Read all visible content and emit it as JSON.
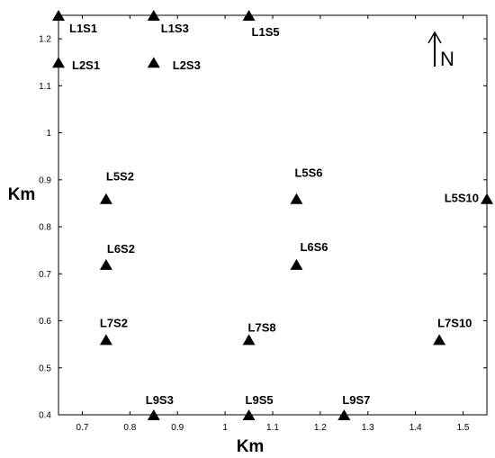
{
  "chart_data": {
    "type": "scatter",
    "xlabel": "Km",
    "ylabel": "Km",
    "xlim": [
      0.65,
      1.55
    ],
    "ylim": [
      0.4,
      1.25
    ],
    "xticks": [
      "0.7",
      "0.8",
      "0.9",
      "1",
      "1.1",
      "1.2",
      "1.3",
      "1.4",
      "1.5"
    ],
    "yticks": [
      "0.4",
      "0.5",
      "0.6",
      "0.7",
      "0.8",
      "0.9",
      "1",
      "1.1",
      "1.2"
    ],
    "grid": false,
    "marker": "triangle",
    "north_arrow": "N",
    "points": [
      {
        "label": "L1S1",
        "x": 0.65,
        "y": 1.25
      },
      {
        "label": "L1S3",
        "x": 0.85,
        "y": 1.25
      },
      {
        "label": "L1S5",
        "x": 1.05,
        "y": 1.25
      },
      {
        "label": "L2S1",
        "x": 0.65,
        "y": 1.15
      },
      {
        "label": "L2S3",
        "x": 0.85,
        "y": 1.15
      },
      {
        "label": "L5S2",
        "x": 0.75,
        "y": 0.86
      },
      {
        "label": "L5S6",
        "x": 1.15,
        "y": 0.86
      },
      {
        "label": "L5S10",
        "x": 1.55,
        "y": 0.86
      },
      {
        "label": "L6S2",
        "x": 0.75,
        "y": 0.72
      },
      {
        "label": "L6S6",
        "x": 1.15,
        "y": 0.72
      },
      {
        "label": "L7S2",
        "x": 0.75,
        "y": 0.56
      },
      {
        "label": "L7S8",
        "x": 1.05,
        "y": 0.56
      },
      {
        "label": "L7S10",
        "x": 1.45,
        "y": 0.56
      },
      {
        "label": "L9S3",
        "x": 0.85,
        "y": 0.4
      },
      {
        "label": "L9S5",
        "x": 1.05,
        "y": 0.4
      },
      {
        "label": "L9S7",
        "x": 1.25,
        "y": 0.4
      }
    ]
  }
}
